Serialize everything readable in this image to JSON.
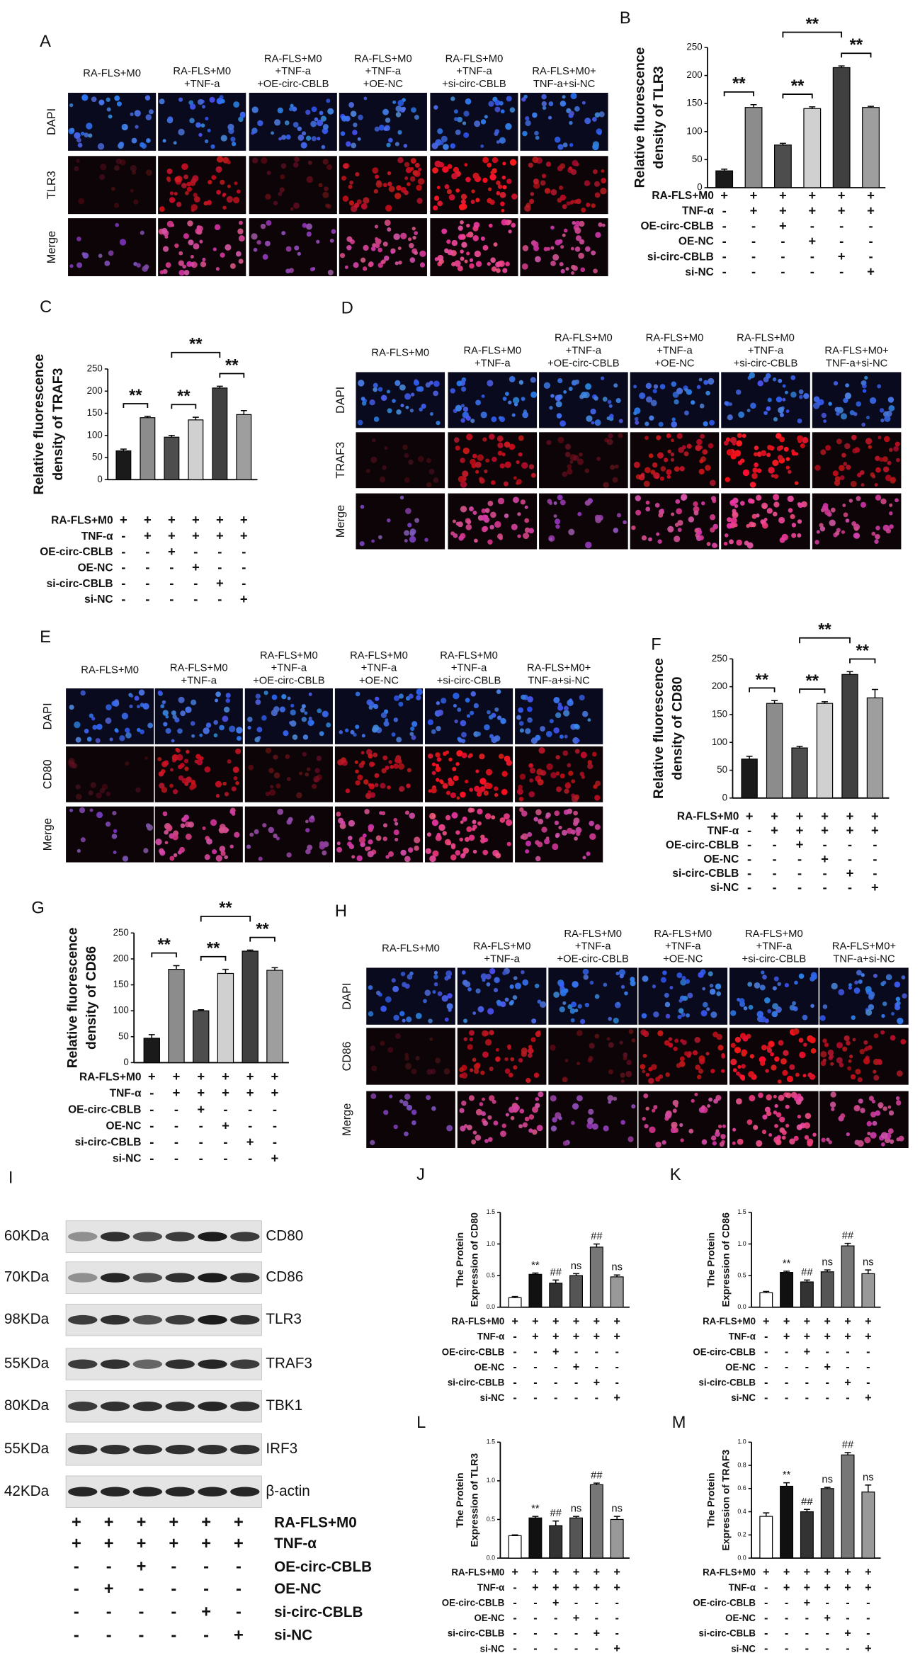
{
  "imaging": [
    {
      "letter": "A",
      "columns": [
        [
          "RA-FLS+M0"
        ],
        [
          "RA-FLS+M0",
          "+TNF-a"
        ],
        [
          "RA-FLS+M0",
          "+TNF-a",
          "+OE-circ-CBLB"
        ],
        [
          "RA-FLS+M0",
          "+TNF-a",
          "+OE-NC"
        ],
        [
          "RA-FLS+M0",
          "+TNF-a",
          "+si-circ-CBLB"
        ],
        [
          "RA-FLS+M0+",
          "TNF-a+si-NC"
        ]
      ],
      "rows": [
        "DAPI",
        "TLR3",
        "Merge"
      ]
    },
    {
      "letter": "D",
      "columns": [
        [
          "RA-FLS+M0"
        ],
        [
          "RA-FLS+M0",
          "+TNF-a"
        ],
        [
          "RA-FLS+M0",
          "+TNF-a",
          "+OE-circ-CBLB"
        ],
        [
          "RA-FLS+M0",
          "+TNF-a",
          "+OE-NC"
        ],
        [
          "RA-FLS+M0",
          "+TNF-a",
          "+si-circ-CBLB"
        ],
        [
          "RA-FLS+M0+",
          "TNF-a+si-NC"
        ]
      ],
      "rows": [
        "DAPI",
        "TRAF3",
        "Merge"
      ]
    },
    {
      "letter": "E",
      "columns": [
        [
          "RA-FLS+M0"
        ],
        [
          "RA-FLS+M0",
          "+TNF-a"
        ],
        [
          "RA-FLS+M0",
          "+TNF-a",
          "+OE-circ-CBLB"
        ],
        [
          "RA-FLS+M0",
          "+TNF-a",
          "+OE-NC"
        ],
        [
          "RA-FLS+M0",
          "+TNF-a",
          "+si-circ-CBLB"
        ],
        [
          "RA-FLS+M0+",
          "TNF-a+si-NC"
        ]
      ],
      "rows": [
        "DAPI",
        "CD80",
        "Merge"
      ]
    },
    {
      "letter": "H",
      "columns": [
        [
          "RA-FLS+M0"
        ],
        [
          "RA-FLS+M0",
          "+TNF-a"
        ],
        [
          "RA-FLS+M0",
          "+TNF-a",
          "+OE-circ-CBLB"
        ],
        [
          "RA-FLS+M0",
          "+TNF-a",
          "+OE-NC"
        ],
        [
          "RA-FLS+M0",
          "+TNF-a",
          "+si-circ-CBLB"
        ],
        [
          "RA-FLS+M0+",
          "TNF-a+si-NC"
        ]
      ],
      "rows": [
        "DAPI",
        "CD86",
        "Merge"
      ]
    }
  ],
  "blot": {
    "letter": "I",
    "bands": [
      {
        "kda": "60KDa",
        "protein": "CD80"
      },
      {
        "kda": "70KDa",
        "protein": "CD86"
      },
      {
        "kda": "98KDa",
        "protein": "TLR3"
      },
      {
        "kda": "55KDa",
        "protein": "TRAF3"
      },
      {
        "kda": "80KDa",
        "protein": "TBK1"
      },
      {
        "kda": "55KDa",
        "protein": "IRF3"
      },
      {
        "kda": "42KDa",
        "protein": "β-actin"
      }
    ],
    "conditions": {
      "names": [
        "RA-FLS+M0",
        "TNF-α",
        "OE-circ-CBLB",
        "OE-NC",
        "si-circ-CBLB",
        "si-NC"
      ],
      "signs": [
        [
          "+",
          "+",
          "+",
          "+",
          "+",
          "+"
        ],
        [
          "+",
          "+",
          "+",
          "+",
          "+",
          "+"
        ],
        [
          "-",
          "-",
          "+",
          "-",
          "-",
          "-"
        ],
        [
          "-",
          "+",
          "-",
          "-",
          "-",
          "-"
        ],
        [
          "-",
          "-",
          "-",
          "-",
          "+",
          "-"
        ],
        [
          "-",
          "-",
          "-",
          "-",
          "-",
          "+"
        ]
      ]
    }
  },
  "chart_data": [
    {
      "type": "bar",
      "letter": "B",
      "ylabel": [
        "Relative fluorescence",
        "density of TLR3"
      ],
      "ylim": [
        0,
        250
      ],
      "yticks": [
        0,
        50,
        100,
        150,
        200,
        250
      ],
      "values": [
        30,
        143,
        76,
        141,
        214,
        143
      ],
      "errors": [
        3,
        5,
        3,
        3,
        3,
        2
      ],
      "colors": [
        "#1a1a1a",
        "#8c8c8c",
        "#4d4d4d",
        "#d0d0d0",
        "#404040",
        "#9e9e9e"
      ],
      "annotations": [
        "**",
        "**",
        "**",
        "**"
      ],
      "conditions": {
        "names": [
          "RA-FLS+M0",
          "TNF-α",
          "OE-circ-CBLB",
          "OE-NC",
          "si-circ-CBLB",
          "si-NC"
        ],
        "signs": [
          [
            "+",
            "+",
            "+",
            "+",
            "+",
            "+"
          ],
          [
            "-",
            "+",
            "+",
            "+",
            "+",
            "+"
          ],
          [
            "-",
            "-",
            "+",
            "-",
            "-",
            "-"
          ],
          [
            "-",
            "-",
            "-",
            "+",
            "-",
            "-"
          ],
          [
            "-",
            "-",
            "-",
            "-",
            "+",
            "-"
          ],
          [
            "-",
            "-",
            "-",
            "-",
            "-",
            "+"
          ]
        ]
      }
    },
    {
      "type": "bar",
      "letter": "C",
      "ylabel": [
        "Relative fluorescence",
        "density of TRAF3"
      ],
      "ylim": [
        0,
        250
      ],
      "yticks": [
        0,
        50,
        100,
        150,
        200,
        250
      ],
      "values": [
        65,
        140,
        96,
        135,
        207,
        147
      ],
      "errors": [
        4,
        3,
        4,
        6,
        4,
        9
      ],
      "colors": [
        "#1a1a1a",
        "#8c8c8c",
        "#4d4d4d",
        "#d0d0d0",
        "#404040",
        "#9e9e9e"
      ],
      "annotations": [
        "**",
        "**",
        "**",
        "**"
      ],
      "conditions": {
        "names": [
          "RA-FLS+M0",
          "TNF-α",
          "OE-circ-CBLB",
          "OE-NC",
          "si-circ-CBLB",
          "si-NC"
        ],
        "signs": [
          [
            "+",
            "+",
            "+",
            "+",
            "+",
            "+"
          ],
          [
            "-",
            "+",
            "+",
            "+",
            "+",
            "+"
          ],
          [
            "-",
            "-",
            "+",
            "-",
            "-",
            "-"
          ],
          [
            "-",
            "-",
            "-",
            "+",
            "-",
            "-"
          ],
          [
            "-",
            "-",
            "-",
            "-",
            "+",
            "-"
          ],
          [
            "-",
            "-",
            "-",
            "-",
            "-",
            "+"
          ]
        ]
      }
    },
    {
      "type": "bar",
      "letter": "F",
      "ylabel": [
        "Relative fluorescence",
        "density of CD80"
      ],
      "ylim": [
        0,
        250
      ],
      "yticks": [
        0,
        50,
        100,
        150,
        200,
        250
      ],
      "values": [
        70,
        170,
        90,
        170,
        222,
        180
      ],
      "errors": [
        5,
        5,
        3,
        3,
        5,
        15
      ],
      "colors": [
        "#1a1a1a",
        "#8c8c8c",
        "#4d4d4d",
        "#d0d0d0",
        "#404040",
        "#9e9e9e"
      ],
      "annotations": [
        "**",
        "**",
        "**",
        "**"
      ],
      "conditions": {
        "names": [
          "RA-FLS+M0",
          "TNF-α",
          "OE-circ-CBLB",
          "OE-NC",
          "si-circ-CBLB",
          "si-NC"
        ],
        "signs": [
          [
            "+",
            "+",
            "+",
            "+",
            "+",
            "+"
          ],
          [
            "-",
            "+",
            "+",
            "+",
            "+",
            "+"
          ],
          [
            "-",
            "-",
            "+",
            "-",
            "-",
            "-"
          ],
          [
            "-",
            "-",
            "-",
            "+",
            "-",
            "-"
          ],
          [
            "-",
            "-",
            "-",
            "-",
            "+",
            "-"
          ],
          [
            "-",
            "-",
            "-",
            "-",
            "-",
            "+"
          ]
        ]
      }
    },
    {
      "type": "bar",
      "letter": "G",
      "ylabel": [
        "Relative fluorescence",
        "density of CD86"
      ],
      "ylim": [
        0,
        250
      ],
      "yticks": [
        0,
        50,
        100,
        150,
        200,
        250
      ],
      "values": [
        47,
        180,
        100,
        172,
        215,
        178
      ],
      "errors": [
        7,
        7,
        2,
        8,
        2,
        5
      ],
      "colors": [
        "#1a1a1a",
        "#8c8c8c",
        "#4d4d4d",
        "#d0d0d0",
        "#404040",
        "#9e9e9e"
      ],
      "annotations": [
        "**",
        "**",
        "**",
        "**"
      ],
      "conditions": {
        "names": [
          "RA-FLS+M0",
          "TNF-α",
          "OE-circ-CBLB",
          "OE-NC",
          "si-circ-CBLB",
          "si-NC"
        ],
        "signs": [
          [
            "+",
            "+",
            "+",
            "+",
            "+",
            "+"
          ],
          [
            "-",
            "+",
            "+",
            "+",
            "+",
            "+"
          ],
          [
            "-",
            "-",
            "+",
            "-",
            "-",
            "-"
          ],
          [
            "-",
            "-",
            "-",
            "+",
            "-",
            "-"
          ],
          [
            "-",
            "-",
            "-",
            "-",
            "+",
            "-"
          ],
          [
            "-",
            "-",
            "-",
            "-",
            "-",
            "+"
          ]
        ]
      }
    },
    {
      "type": "bar",
      "letter": "J",
      "ylabel": [
        "The Protein",
        "Expression of CD80"
      ],
      "ylim": [
        0,
        1.5
      ],
      "yticks": [
        {
          "value": 0,
          "label": "0.0"
        },
        0.5,
        {
          "value": 1,
          "label": "1.0"
        },
        1.5
      ],
      "values": [
        0.15,
        0.52,
        0.38,
        0.5,
        0.95,
        0.48
      ],
      "errors": [
        0.02,
        0.02,
        0.05,
        0.03,
        0.05,
        0.03
      ],
      "colors": [
        "#ffffff",
        "#111111",
        "#333333",
        "#555555",
        "#777777",
        "#999999"
      ],
      "annotations": [
        "**",
        "##",
        "ns",
        "##",
        "ns"
      ],
      "conditions": {
        "names": [
          "RA-FLS+M0",
          "TNF-α",
          "OE-circ-CBLB",
          "OE-NC",
          "si-circ-CBLB",
          "si-NC"
        ],
        "signs": [
          [
            "+",
            "+",
            "+",
            "+",
            "+",
            "+"
          ],
          [
            "-",
            "+",
            "+",
            "+",
            "+",
            "+"
          ],
          [
            "-",
            "-",
            "+",
            "-",
            "-",
            "-"
          ],
          [
            "-",
            "-",
            "-",
            "+",
            "-",
            "-"
          ],
          [
            "-",
            "-",
            "-",
            "-",
            "+",
            "-"
          ],
          [
            "-",
            "-",
            "-",
            "-",
            "-",
            "+"
          ]
        ]
      }
    },
    {
      "type": "bar",
      "letter": "K",
      "ylabel": [
        "The Protein",
        "Expression of CD86"
      ],
      "ylim": [
        0,
        1.5
      ],
      "yticks": [
        {
          "value": 0,
          "label": "0.0"
        },
        0.5,
        {
          "value": 1,
          "label": "1.0"
        },
        1.5
      ],
      "values": [
        0.23,
        0.55,
        0.4,
        0.56,
        0.97,
        0.53
      ],
      "errors": [
        0.02,
        0.02,
        0.03,
        0.03,
        0.04,
        0.06
      ],
      "colors": [
        "#ffffff",
        "#111111",
        "#333333",
        "#555555",
        "#777777",
        "#999999"
      ],
      "annotations": [
        "**",
        "##",
        "ns",
        "##",
        "ns"
      ],
      "conditions": {
        "names": [
          "RA-FLS+M0",
          "TNF-α",
          "OE-circ-CBLB",
          "OE-NC",
          "si-circ-CBLB",
          "si-NC"
        ],
        "signs": [
          [
            "+",
            "+",
            "+",
            "+",
            "+",
            "+"
          ],
          [
            "-",
            "+",
            "+",
            "+",
            "+",
            "+"
          ],
          [
            "-",
            "-",
            "+",
            "-",
            "-",
            "-"
          ],
          [
            "-",
            "-",
            "-",
            "+",
            "-",
            "-"
          ],
          [
            "-",
            "-",
            "-",
            "-",
            "+",
            "-"
          ],
          [
            "-",
            "-",
            "-",
            "-",
            "-",
            "+"
          ]
        ]
      }
    },
    {
      "type": "bar",
      "letter": "L",
      "ylabel": [
        "The Protein",
        "Expression of TLR3"
      ],
      "ylim": [
        0,
        1.5
      ],
      "yticks": [
        {
          "value": 0,
          "label": "0.0"
        },
        0.5,
        {
          "value": 1,
          "label": "1.0"
        },
        1.5
      ],
      "values": [
        0.29,
        0.52,
        0.42,
        0.52,
        0.95,
        0.5
      ],
      "errors": [
        0.01,
        0.02,
        0.06,
        0.02,
        0.02,
        0.04
      ],
      "colors": [
        "#ffffff",
        "#111111",
        "#333333",
        "#555555",
        "#777777",
        "#999999"
      ],
      "annotations": [
        "**",
        "##",
        "ns",
        "##",
        "ns"
      ],
      "conditions": {
        "names": [
          "RA-FLS+M0",
          "TNF-α",
          "OE-circ-CBLB",
          "OE-NC",
          "si-circ-CBLB",
          "si-NC"
        ],
        "signs": [
          [
            "+",
            "+",
            "+",
            "+",
            "+",
            "+"
          ],
          [
            "-",
            "+",
            "+",
            "+",
            "+",
            "+"
          ],
          [
            "-",
            "-",
            "+",
            "-",
            "-",
            "-"
          ],
          [
            "-",
            "-",
            "-",
            "+",
            "-",
            "-"
          ],
          [
            "-",
            "-",
            "-",
            "-",
            "+",
            "-"
          ],
          [
            "-",
            "-",
            "-",
            "-",
            "-",
            "+"
          ]
        ]
      }
    },
    {
      "type": "bar",
      "letter": "M",
      "ylabel": [
        "The Protein",
        "Expression of TRAF3"
      ],
      "ylim": [
        0,
        1
      ],
      "yticks": [
        {
          "value": 0,
          "label": "0.0"
        },
        0.2,
        0.4,
        0.6,
        0.8,
        {
          "value": 1,
          "label": "1.0"
        }
      ],
      "values": [
        0.36,
        0.62,
        0.4,
        0.6,
        0.89,
        0.57
      ],
      "errors": [
        0.03,
        0.03,
        0.02,
        0.01,
        0.02,
        0.06
      ],
      "colors": [
        "#ffffff",
        "#111111",
        "#333333",
        "#555555",
        "#777777",
        "#999999"
      ],
      "annotations": [
        "**",
        "##",
        "ns",
        "##",
        "ns"
      ],
      "conditions": {
        "names": [
          "RA-FLS+M0",
          "TNF-α",
          "OE-circ-CBLB",
          "OE-NC",
          "si-circ-CBLB",
          "si-NC"
        ],
        "signs": [
          [
            "+",
            "+",
            "+",
            "+",
            "+",
            "+"
          ],
          [
            "-",
            "+",
            "+",
            "+",
            "+",
            "+"
          ],
          [
            "-",
            "-",
            "+",
            "-",
            "-",
            "-"
          ],
          [
            "-",
            "-",
            "-",
            "+",
            "-",
            "-"
          ],
          [
            "-",
            "-",
            "-",
            "-",
            "+",
            "-"
          ],
          [
            "-",
            "-",
            "-",
            "-",
            "-",
            "+"
          ]
        ]
      }
    }
  ]
}
